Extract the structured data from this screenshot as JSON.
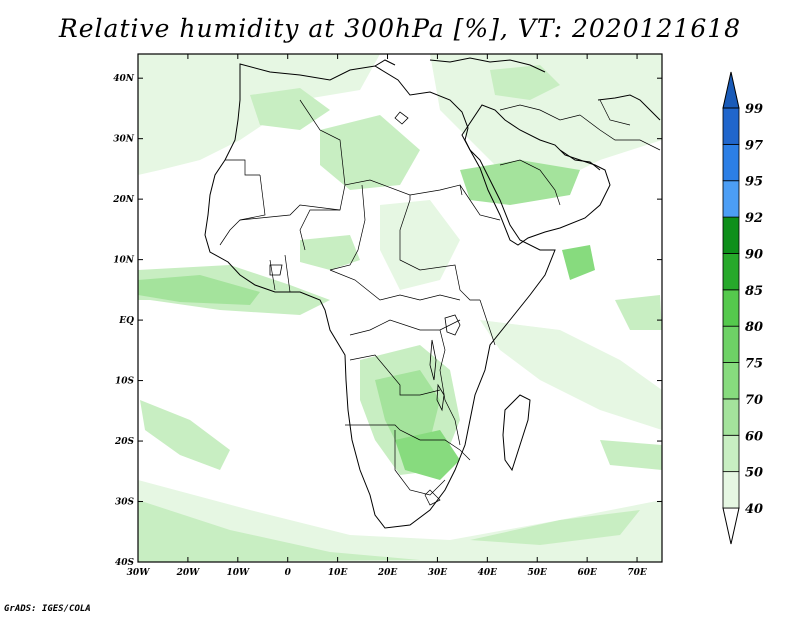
{
  "title": "Relative humidity at 300hPa [%], VT: 2020121618",
  "credit": "GrADS: IGES/COLA",
  "map": {
    "lon_ticks": [
      "30W",
      "20W",
      "10W",
      "0",
      "10E",
      "20E",
      "30E",
      "40E",
      "50E",
      "60E",
      "70E"
    ],
    "lat_ticks": [
      "40N",
      "30N",
      "20N",
      "10N",
      "EQ",
      "10S",
      "20S",
      "30S",
      "40S"
    ],
    "lon_range": [
      -30,
      75
    ],
    "lat_range": [
      -40,
      44
    ]
  },
  "colorbar": {
    "levels": [
      "40",
      "50",
      "60",
      "70",
      "75",
      "80",
      "85",
      "90",
      "92",
      "95",
      "97",
      "99"
    ],
    "colors": [
      "#ffffff",
      "#e6f7e3",
      "#c8eec2",
      "#a4e39c",
      "#87db7e",
      "#6ed266",
      "#55c94d",
      "#27a92b",
      "#0e8f1a",
      "#4c9ef5",
      "#2c7fe6",
      "#2066cc"
    ]
  }
}
